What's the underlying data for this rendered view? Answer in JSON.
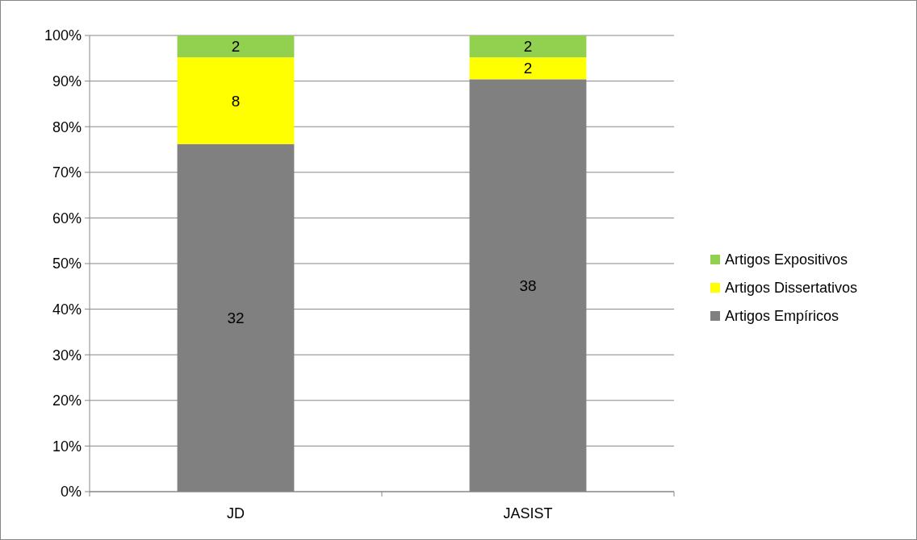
{
  "chart_data": {
    "type": "bar",
    "stacked": true,
    "categories": [
      "JD",
      "JASIST"
    ],
    "series": [
      {
        "name": "Artigos Empíricos",
        "color": "#808080",
        "values": [
          76.2,
          90.4
        ]
      },
      {
        "name": "Artigos Dissertativos",
        "color": "#ffff00",
        "values": [
          19.0,
          4.8
        ]
      },
      {
        "name": "Artigos Expositivos",
        "color": "#92d050",
        "values": [
          4.8,
          4.8
        ]
      }
    ],
    "annotations": [
      "32",
      "38",
      "8",
      "2",
      "2",
      "2"
    ],
    "ylim": [
      0,
      100
    ],
    "yticks": [
      {
        "value": 0,
        "label": "0%"
      },
      {
        "value": 10,
        "label": "10%"
      },
      {
        "value": 20,
        "label": "20%"
      },
      {
        "value": 30,
        "label": "30%"
      },
      {
        "value": 40,
        "label": "40%"
      },
      {
        "value": 50,
        "label": "50%"
      },
      {
        "value": 60,
        "label": "60%"
      },
      {
        "value": 70,
        "label": "70%"
      },
      {
        "value": 80,
        "label": "80%"
      },
      {
        "value": 90,
        "label": "90%"
      },
      {
        "value": 100,
        "label": "100%"
      }
    ],
    "grid": "y",
    "legend": "right"
  }
}
